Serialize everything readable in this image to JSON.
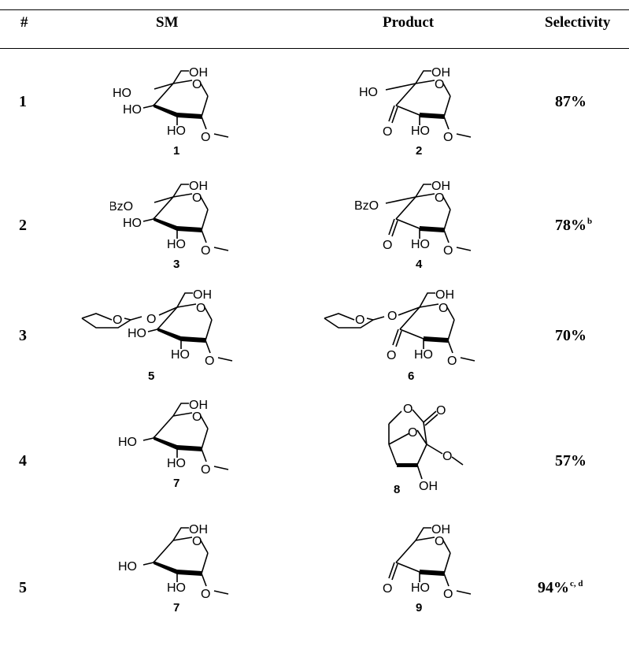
{
  "table": {
    "headers": {
      "num": "#",
      "sm": "SM",
      "product": "Product",
      "selectivity": "Selectivity"
    },
    "rows": [
      {
        "num": "1",
        "sm_id": "1",
        "product_id": "2",
        "selectivity": "87%",
        "footnote": ""
      },
      {
        "num": "2",
        "sm_id": "3",
        "product_id": "4",
        "selectivity": "78%",
        "footnote": "b"
      },
      {
        "num": "3",
        "sm_id": "5",
        "product_id": "6",
        "selectivity": "70%",
        "footnote": ""
      },
      {
        "num": "4",
        "sm_id": "7",
        "product_id": "8",
        "selectivity": "57%",
        "footnote": ""
      },
      {
        "num": "5",
        "sm_id": "7",
        "product_id": "9",
        "selectivity": "94%",
        "footnote": "c, d"
      }
    ]
  },
  "labels": {
    "oh": "OH",
    "ho": "HO",
    "o": "O",
    "bzo": "BzO"
  }
}
